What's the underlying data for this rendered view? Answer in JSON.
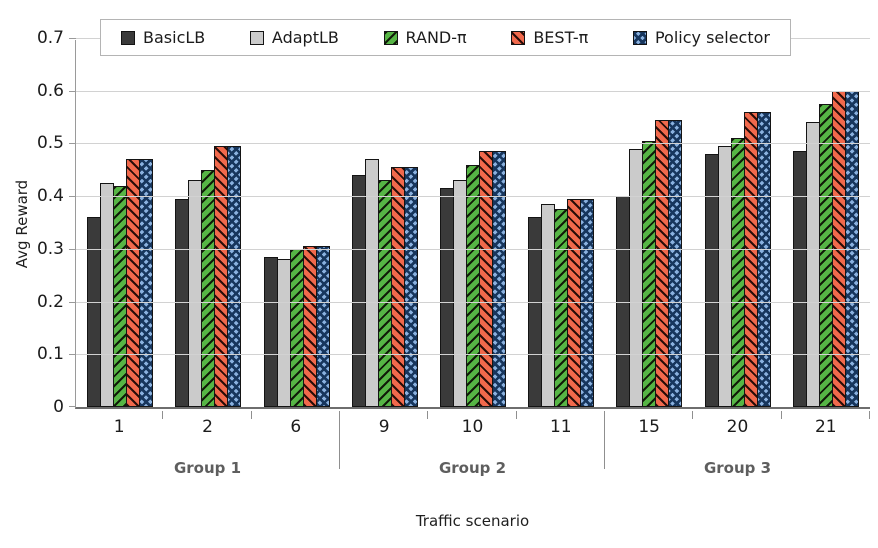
{
  "colors": {
    "basic_fill": "#3a3a3a",
    "adapt_fill": "#cbcbcb",
    "rand_fill": "#56b545",
    "best_fill": "#f1694c",
    "policy_fill": "#8ab1df",
    "policy_hatch": "#17365d",
    "gridline": "#d2d2d2",
    "axis": "#6e6e6e",
    "group_label_text": "#5e5e5e"
  },
  "chart_data": {
    "type": "bar",
    "title": "",
    "xlabel": "Traffic scenario",
    "ylabel": "Avg Reward",
    "ylim": [
      0,
      0.7
    ],
    "ytick_step": 0.1,
    "y_tick_labels": [
      "0",
      "0.1",
      "0.2",
      "0.3",
      "0.4",
      "0.5",
      "0.6",
      "0.7"
    ],
    "grid": true,
    "legend_position": "top",
    "categories": [
      "1",
      "2",
      "6",
      "9",
      "10",
      "11",
      "15",
      "20",
      "21"
    ],
    "groups": [
      {
        "label": "Group 1",
        "categories": [
          "1",
          "2",
          "6"
        ]
      },
      {
        "label": "Group 2",
        "categories": [
          "9",
          "10",
          "11"
        ]
      },
      {
        "label": "Group 3",
        "categories": [
          "15",
          "20",
          "21"
        ]
      }
    ],
    "series": [
      {
        "name": "BasicLB",
        "key": "basic",
        "pattern": "solid-dark-gray",
        "values": [
          0.36,
          0.395,
          0.285,
          0.44,
          0.415,
          0.36,
          0.4,
          0.48,
          0.485
        ]
      },
      {
        "name": "AdaptLB",
        "key": "adapt",
        "pattern": "solid-light-gray",
        "values": [
          0.425,
          0.43,
          0.28,
          0.47,
          0.43,
          0.385,
          0.49,
          0.495,
          0.54
        ]
      },
      {
        "name": "RAND-π",
        "key": "rand",
        "pattern": "green-forward-diagonal",
        "values": [
          0.42,
          0.45,
          0.3,
          0.43,
          0.46,
          0.375,
          0.505,
          0.51,
          0.575
        ]
      },
      {
        "name": "BEST-π",
        "key": "best",
        "pattern": "red-backward-diagonal",
        "values": [
          0.47,
          0.495,
          0.305,
          0.455,
          0.485,
          0.395,
          0.545,
          0.56,
          0.6
        ]
      },
      {
        "name": "Policy selector",
        "key": "policy",
        "pattern": "blue-crosshatch",
        "values": [
          0.47,
          0.495,
          0.305,
          0.455,
          0.485,
          0.395,
          0.545,
          0.56,
          0.6
        ]
      }
    ]
  }
}
